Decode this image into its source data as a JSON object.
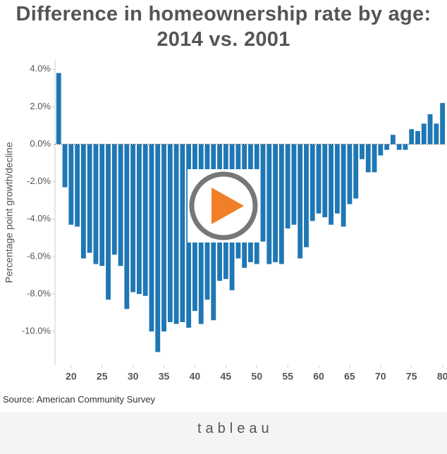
{
  "chart_data": {
    "type": "bar",
    "title": "Difference in homeownership rate by age: 2014 vs. 2001",
    "y_label": "Percentage point growth/decline",
    "source": "Source: American Community Survey",
    "footer": "tableau",
    "color": "#1f77b4",
    "x": [
      18,
      19,
      20,
      21,
      22,
      23,
      24,
      25,
      26,
      27,
      28,
      29,
      30,
      31,
      32,
      33,
      34,
      35,
      36,
      37,
      38,
      39,
      40,
      41,
      42,
      43,
      44,
      45,
      46,
      47,
      48,
      49,
      50,
      51,
      52,
      53,
      54,
      55,
      56,
      57,
      58,
      59,
      60,
      61,
      62,
      63,
      64,
      65,
      66,
      67,
      68,
      69,
      70,
      71,
      72,
      73,
      74,
      75,
      76,
      77,
      78,
      79,
      80
    ],
    "values": [
      3.8,
      -2.3,
      -4.3,
      -4.4,
      -6.1,
      -5.8,
      -6.4,
      -6.5,
      -8.3,
      -5.9,
      -6.5,
      -8.8,
      -7.9,
      -8.0,
      -8.1,
      -10.0,
      -11.1,
      -10.0,
      -9.5,
      -9.6,
      -9.5,
      -9.8,
      -8.9,
      -9.6,
      -8.3,
      -9.4,
      -7.3,
      -7.2,
      -7.8,
      -6.1,
      -6.6,
      -6.3,
      -6.4,
      -5.2,
      -6.4,
      -6.3,
      -6.4,
      -4.5,
      -4.3,
      -6.1,
      -5.5,
      -4.1,
      -3.7,
      -3.9,
      -4.3,
      -3.7,
      -4.4,
      -3.2,
      -2.9,
      -0.8,
      -1.5,
      -1.5,
      -0.6,
      -0.3,
      0.5,
      -0.3,
      -0.3,
      0.8,
      0.7,
      1.1,
      1.6,
      1.1,
      2.2
    ],
    "xlim": [
      17.4,
      80.5
    ],
    "xticks": [
      20,
      25,
      30,
      35,
      40,
      45,
      50,
      55,
      60,
      65,
      70,
      75,
      80
    ],
    "ylim": [
      -11.8,
      4.5
    ],
    "yticks": [
      {
        "value": 4,
        "label": "4.0%"
      },
      {
        "value": 2,
        "label": "2.0%"
      },
      {
        "value": 0,
        "label": "0.0%"
      },
      {
        "value": -2,
        "label": "-2.0%"
      },
      {
        "value": -4,
        "label": "-4.0%"
      },
      {
        "value": -6,
        "label": "-6.0%"
      },
      {
        "value": -8,
        "label": "-8.0%"
      },
      {
        "value": -10,
        "label": "-10.0%"
      }
    ],
    "grid": false
  }
}
